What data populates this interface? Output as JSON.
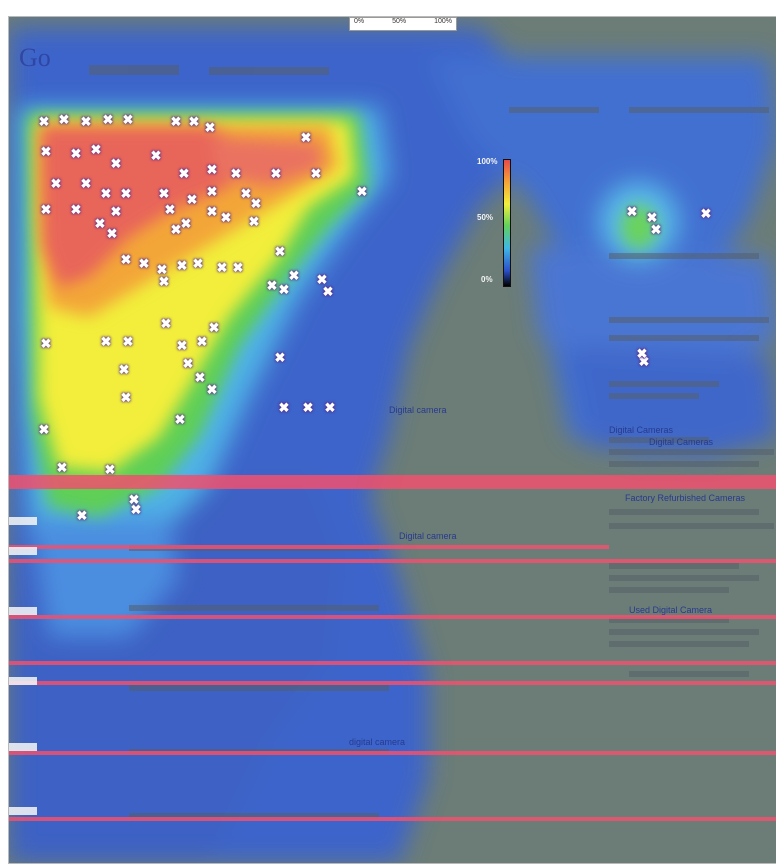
{
  "header": {
    "logo_text": "Go",
    "scale_marks": [
      "0%",
      "50%",
      "100%"
    ]
  },
  "legend": {
    "top_label": "100%",
    "mid_label": "50%",
    "bottom_label": "0%"
  },
  "results": [
    {
      "text": "Digital camera"
    },
    {
      "text": "Digital Cameras"
    },
    {
      "text": "Digital Cameras"
    },
    {
      "text": "Factory Refurbished Cameras"
    },
    {
      "text": "Used Digital Camera"
    },
    {
      "text": "Digital camera"
    },
    {
      "text": "digital camera"
    }
  ],
  "colors": {
    "background": "#6e7f78",
    "cold": "#3d6fd8",
    "warm": "#f3ef3c",
    "hot": "#e85a5a",
    "line": "#f0506e"
  }
}
